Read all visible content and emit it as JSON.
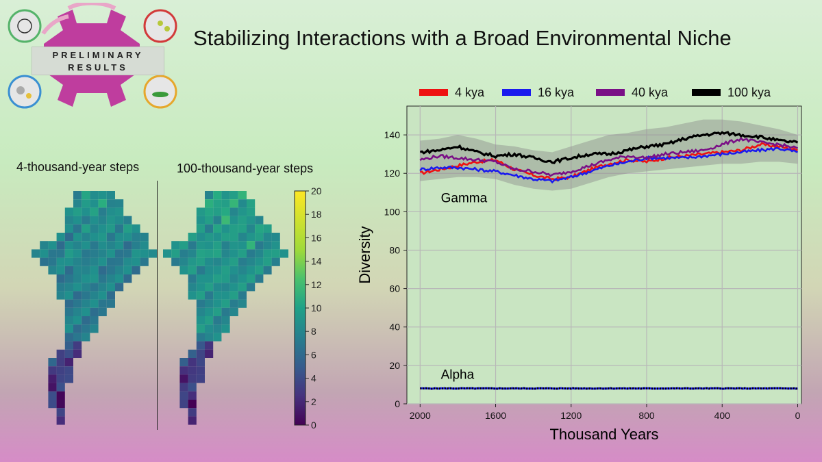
{
  "badge": {
    "line1": "PRELIMINARY",
    "line2": "RESULTS"
  },
  "title": "Stabilizing Interactions with a Broad Environmental Niche",
  "maps": {
    "label_left": "4-thousand-year steps",
    "label_right": "100-thousand-year steps"
  },
  "colorbar": {
    "ticks": [
      "0",
      "2",
      "4",
      "6",
      "8",
      "10",
      "12",
      "14",
      "16",
      "18",
      "20"
    ],
    "min": 0,
    "max": 20
  },
  "colors": {
    "red": "#ee1111",
    "blue": "#1a1aee",
    "purple": "#7a0f86",
    "black": "#000000",
    "band": "#8c8c8c"
  },
  "chart_data": {
    "type": "line",
    "title": "",
    "xlabel": "Thousand Years",
    "ylabel": "Diversity",
    "xlim": [
      2070,
      -20
    ],
    "ylim": [
      0,
      155
    ],
    "grid": true,
    "legend_position": "top",
    "xticks": [
      2000,
      1600,
      1200,
      800,
      400,
      0
    ],
    "xtick_labels": [
      "2000",
      "1600",
      "1200",
      "800",
      "400",
      "0"
    ],
    "yticks": [
      0,
      20,
      40,
      60,
      80,
      100,
      120,
      140
    ],
    "ytick_labels": [
      "0",
      "20",
      "40",
      "60",
      "80",
      "100",
      "120",
      "140"
    ],
    "x": [
      2000,
      1900,
      1800,
      1700,
      1600,
      1500,
      1400,
      1300,
      1200,
      1100,
      1000,
      900,
      800,
      700,
      600,
      500,
      400,
      300,
      200,
      100,
      0
    ],
    "series": [
      {
        "name": "4 kya",
        "color": "#ee1111",
        "gamma": [
          120,
          122,
          124,
          126,
          127,
          122,
          119,
          117,
          118,
          122,
          125,
          127,
          126,
          128,
          129,
          130,
          131,
          132,
          135,
          134,
          132
        ]
      },
      {
        "name": "16 kya",
        "color": "#1a1aee",
        "gamma": [
          122,
          123,
          123,
          122,
          121,
          119,
          117,
          116,
          118,
          121,
          124,
          126,
          128,
          128,
          128,
          129,
          130,
          131,
          132,
          133,
          131
        ]
      },
      {
        "name": "40 kya",
        "color": "#7a0f86",
        "gamma": [
          127,
          129,
          128,
          127,
          126,
          122,
          121,
          119,
          121,
          124,
          127,
          129,
          128,
          130,
          131,
          132,
          135,
          138,
          136,
          135,
          133
        ]
      },
      {
        "name": "100 kya",
        "color": "#000000",
        "gamma": [
          131,
          132,
          134,
          131,
          129,
          130,
          128,
          126,
          128,
          130,
          130,
          132,
          134,
          135,
          138,
          140,
          141,
          140,
          139,
          137,
          136
        ]
      }
    ],
    "gamma_band": {
      "lower": [
        116,
        117,
        118,
        118,
        117,
        114,
        112,
        111,
        112,
        115,
        118,
        120,
        121,
        122,
        123,
        124,
        125,
        125,
        126,
        126,
        125
      ],
      "upper": [
        137,
        138,
        140,
        138,
        135,
        134,
        132,
        131,
        134,
        137,
        140,
        141,
        143,
        144,
        146,
        148,
        148,
        147,
        145,
        143,
        140
      ]
    },
    "alpha": {
      "name": "Alpha",
      "values": [
        8,
        8,
        8,
        8,
        8,
        8,
        8,
        8,
        8,
        8,
        8,
        8,
        8,
        8,
        8,
        8,
        8,
        8,
        8,
        8,
        8
      ]
    },
    "annotations": {
      "gamma": "Gamma",
      "alpha": "Alpha"
    }
  }
}
